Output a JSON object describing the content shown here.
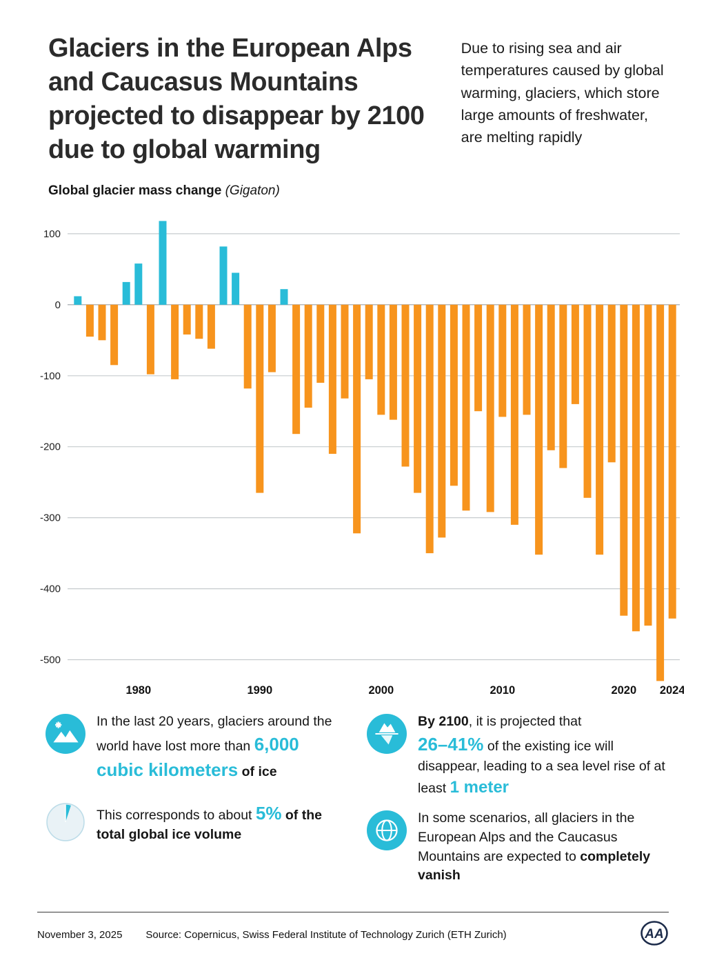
{
  "page": {
    "background": "#ffffff",
    "accent_cyan": "#29BCD8",
    "accent_orange": "#F7941D"
  },
  "header": {
    "title": "Glaciers in the European Alps and Caucasus Mountains projected to disappear by 2100 due to global warming",
    "intro": "Due to rising sea and air temperatures caused by global warming, glaciers, which store large amounts of freshwater, are melting rapidly"
  },
  "chart": {
    "label_bold": "Global glacier mass change",
    "label_italic": "(Gigaton)"
  },
  "chart_data": {
    "type": "bar",
    "title": "Global glacier mass change (Gigaton)",
    "x": [
      1975,
      1976,
      1977,
      1978,
      1979,
      1980,
      1981,
      1982,
      1983,
      1984,
      1985,
      1986,
      1987,
      1988,
      1989,
      1990,
      1991,
      1992,
      1993,
      1994,
      1995,
      1996,
      1997,
      1998,
      1999,
      2000,
      2001,
      2002,
      2003,
      2004,
      2005,
      2006,
      2007,
      2008,
      2009,
      2010,
      2011,
      2012,
      2013,
      2014,
      2015,
      2016,
      2017,
      2018,
      2019,
      2020,
      2021,
      2022,
      2023,
      2024
    ],
    "values": [
      12,
      -45,
      -50,
      -85,
      32,
      58,
      -98,
      118,
      -105,
      -42,
      -48,
      -62,
      82,
      45,
      -118,
      -265,
      -95,
      22,
      -182,
      -145,
      -110,
      -210,
      -132,
      -322,
      -105,
      -155,
      -162,
      -228,
      -265,
      -350,
      -328,
      -255,
      -290,
      -150,
      -292,
      -158,
      -310,
      -155,
      -352,
      -205,
      -230,
      -140,
      -272,
      -352,
      -222,
      -438,
      -460,
      -452,
      -530,
      -442
    ],
    "ylim": [
      -550,
      130
    ],
    "yticks": [
      100,
      0,
      -100,
      -200,
      -300,
      -400,
      -500
    ],
    "xticks": [
      1980,
      1990,
      2000,
      2010,
      2020,
      2024
    ],
    "positive_color": "#29BCD8",
    "negative_color": "#F7941D",
    "grid": true,
    "legend": "none",
    "xlabel": "",
    "ylabel": "Gigaton"
  },
  "facts": {
    "fact1": {
      "icon": "glacier-icon",
      "pre": "In the last 20 years, glaciers around the world have lost more than",
      "highlight": "6,000 cubic kilometers",
      "post": "of ice"
    },
    "fact2": {
      "icon": "pie-chart-icon",
      "pre": "This corresponds to about",
      "highlight": "5%",
      "post": "of the total global ice volume"
    },
    "fact3": {
      "icon": "iceberg-icon",
      "bold_pre": "By 2100",
      "pre": ", it is projected that",
      "highlight1": "26–41%",
      "mid": "of the existing ice will disappear, leading to a sea level rise of at least",
      "highlight2": "1 meter"
    },
    "fact4": {
      "icon": "globe-icon",
      "pre": "In some scenarios, all glaciers in the European Alps and the Caucasus Mountains are expected to",
      "bold": "completely vanish"
    }
  },
  "footer": {
    "date": "November 3, 2025",
    "source": "Source: Copernicus, Swiss Federal Institute of Technology Zurich (ETH Zurich)",
    "logo_text": "AA"
  }
}
